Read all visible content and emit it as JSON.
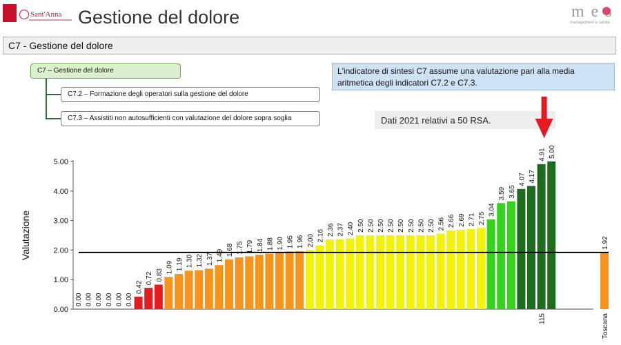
{
  "header": {
    "title": "Gestione del dolore",
    "logo_left_name": "Sant'Anna",
    "logo_right_name": "m e s",
    "logo_right_sub": "management e sanità"
  },
  "section_bar": {
    "label": "C7 - Gestione del dolore"
  },
  "tree": {
    "root": "C7 – Gestione del dolore",
    "children": [
      "C7.2 – Formazione degli operatori sulla gestione del dolore",
      "C7.3 – Assistiti non autosufficienti con valutazione del dolore sopra soglia"
    ]
  },
  "info_box": {
    "text": "L'indicatore di sintesi C7 assume una valutazione pari alla media aritmetica degli indicatori C7.2 e C7.3."
  },
  "note": {
    "text": "Dati 2021 relativi a 50 RSA."
  },
  "colors": {
    "red": "#e31b23",
    "orange": "#f7941d",
    "yellow": "#f2f20a",
    "lightgreen": "#38d11f",
    "darkgreen": "#1f6b1f",
    "arrow": "#e31b23",
    "reference_line": "#000000"
  },
  "chart_data": {
    "type": "bar",
    "ylabel": "Valutazione",
    "ylim": [
      0,
      5
    ],
    "yticks": [
      "0.00",
      "1.00",
      "2.00",
      "3.00",
      "4.00",
      "5.00"
    ],
    "grid": false,
    "reference_line": 1.92,
    "highlighted_category": "115",
    "values": [
      0.0,
      0.0,
      0.0,
      0.0,
      0.0,
      0.0,
      0.42,
      0.72,
      0.83,
      1.09,
      1.19,
      1.3,
      1.32,
      1.37,
      1.49,
      1.68,
      1.75,
      1.79,
      1.84,
      1.88,
      1.9,
      1.95,
      1.96,
      2.0,
      2.16,
      2.36,
      2.37,
      2.4,
      2.5,
      2.5,
      2.5,
      2.5,
      2.5,
      2.5,
      2.5,
      2.5,
      2.56,
      2.66,
      2.69,
      2.71,
      2.75,
      3.04,
      3.59,
      3.65,
      4.07,
      4.17,
      4.91,
      5.0
    ],
    "value_labels": [
      "0.00",
      "0.00",
      "0.00",
      "0.00",
      "0.00",
      "0.00",
      "0.42",
      "0.72",
      "0.83",
      "1.09",
      "1.19",
      "1.30",
      "1.32",
      "1.37",
      "1.49",
      "1.68",
      "1.75",
      "1.79",
      "1.84",
      "1.88",
      "1.90",
      "1.95",
      "1.96",
      "2.00",
      "2.16",
      "2.36",
      "2.37",
      "2.40",
      "2.50",
      "2.50",
      "2.50",
      "2.50",
      "2.50",
      "2.50",
      "2.50",
      "2.50",
      "2.56",
      "2.66",
      "2.69",
      "2.71",
      "2.75",
      "3.04",
      "3.59",
      "3.65",
      "4.07",
      "4.17",
      "4.91",
      "5.00"
    ],
    "bar_colors": [
      "red",
      "red",
      "red",
      "red",
      "red",
      "red",
      "red",
      "red",
      "red",
      "orange",
      "orange",
      "orange",
      "orange",
      "orange",
      "orange",
      "orange",
      "orange",
      "orange",
      "orange",
      "orange",
      "orange",
      "orange",
      "orange",
      "yellow",
      "yellow",
      "yellow",
      "yellow",
      "yellow",
      "yellow",
      "yellow",
      "yellow",
      "yellow",
      "yellow",
      "yellow",
      "yellow",
      "yellow",
      "yellow",
      "yellow",
      "yellow",
      "yellow",
      "yellow",
      "lightgreen",
      "lightgreen",
      "lightgreen",
      "darkgreen",
      "darkgreen",
      "darkgreen",
      "darkgreen"
    ],
    "category_labels": {
      "46": "115"
    },
    "toscana": {
      "label": "Toscana",
      "value": 1.92,
      "value_label": "1.92",
      "color": "orange"
    }
  }
}
